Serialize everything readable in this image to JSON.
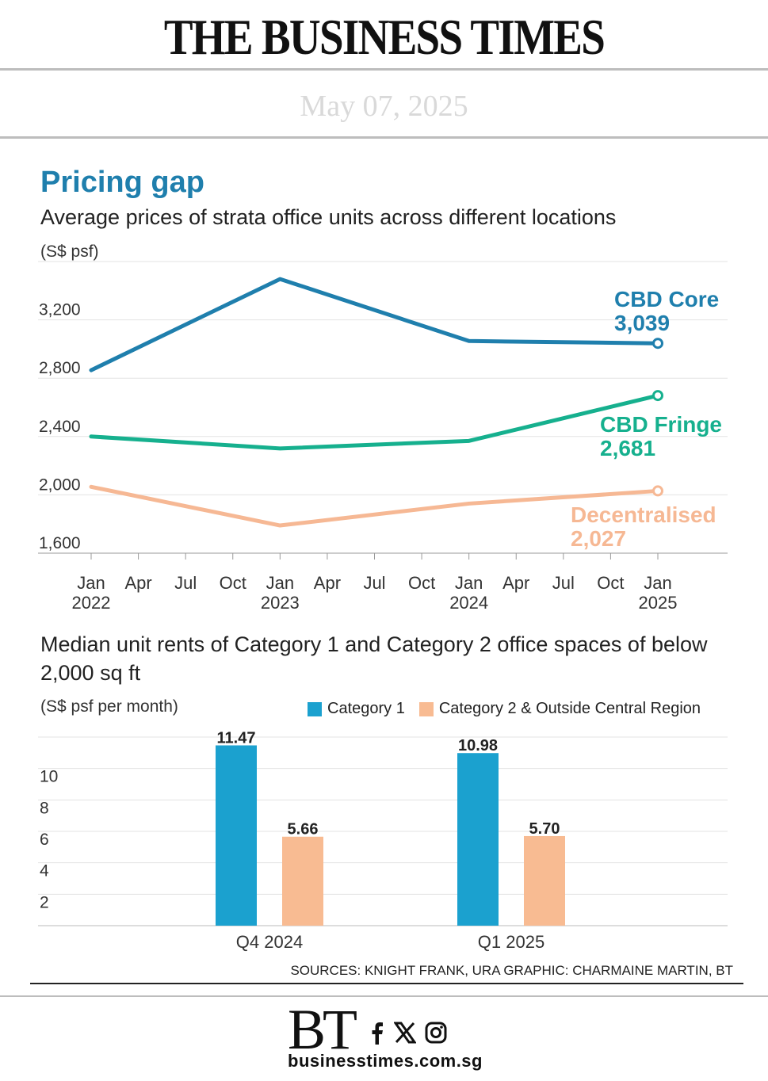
{
  "header": {
    "masthead": "THE BUSINESS TIMES",
    "date": "May 07, 2025"
  },
  "title": "Pricing gap",
  "colors": {
    "cbd_core": "#1f7fad",
    "cbd_fringe": "#16b08e",
    "decentralised": "#f6b894",
    "category1": "#1ba1cf",
    "category2": "#f8bb92",
    "title": "#1f7fad"
  },
  "chart_data": [
    {
      "type": "line",
      "title": "Average prices of strata office units across different locations",
      "ylabel": "(S$ psf)",
      "ylim": [
        1600,
        3600
      ],
      "yticks": [
        "1,600",
        "2,000",
        "2,400",
        "2,800",
        "3,200"
      ],
      "xtick_labels": [
        {
          "month": "Jan",
          "year": "2022"
        },
        {
          "month": "Apr",
          "year": ""
        },
        {
          "month": "Jul",
          "year": ""
        },
        {
          "month": "Oct",
          "year": ""
        },
        {
          "month": "Jan",
          "year": "2023"
        },
        {
          "month": "Apr",
          "year": ""
        },
        {
          "month": "Jul",
          "year": ""
        },
        {
          "month": "Oct",
          "year": ""
        },
        {
          "month": "Jan",
          "year": "2024"
        },
        {
          "month": "Apr",
          "year": ""
        },
        {
          "month": "Jul",
          "year": ""
        },
        {
          "month": "Oct",
          "year": ""
        },
        {
          "month": "Jan",
          "year": "2025"
        }
      ],
      "x": [
        "Jan 2022",
        "Jan 2023",
        "Jan 2024",
        "Jan 2025"
      ],
      "series": [
        {
          "name": "CBD Core",
          "values": [
            2855,
            3480,
            3055,
            3039
          ],
          "end_label": "3,039"
        },
        {
          "name": "CBD Fringe",
          "values": [
            2400,
            2318,
            2370,
            2681
          ],
          "end_label": "2,681"
        },
        {
          "name": "Decentralised",
          "values": [
            2055,
            1790,
            1940,
            2027
          ],
          "end_label": "2,027"
        }
      ]
    },
    {
      "type": "bar",
      "title": "Median unit rents of Category 1 and Category 2 office spaces of below 2,000 sq ft",
      "ylabel": "(S$ psf per month)",
      "ylim": [
        0,
        12
      ],
      "yticks": [
        "2",
        "4",
        "6",
        "8",
        "10"
      ],
      "categories": [
        "Q4 2024",
        "Q1 2025"
      ],
      "series": [
        {
          "name": "Category 1",
          "values": [
            11.47,
            10.98
          ],
          "labels": [
            "11.47",
            "10.98"
          ]
        },
        {
          "name": "Category 2 & Outside Central Region",
          "values": [
            5.66,
            5.7
          ],
          "labels": [
            "5.66",
            "5.70"
          ]
        }
      ]
    }
  ],
  "credits": "SOURCES: KNIGHT FRANK, URA   GRAPHIC: CHARMAINE MARTIN, BT",
  "footer": {
    "logo": "BT",
    "website": "businesstimes.com.sg",
    "social_icons": [
      "facebook-icon",
      "x-icon",
      "instagram-icon"
    ]
  }
}
